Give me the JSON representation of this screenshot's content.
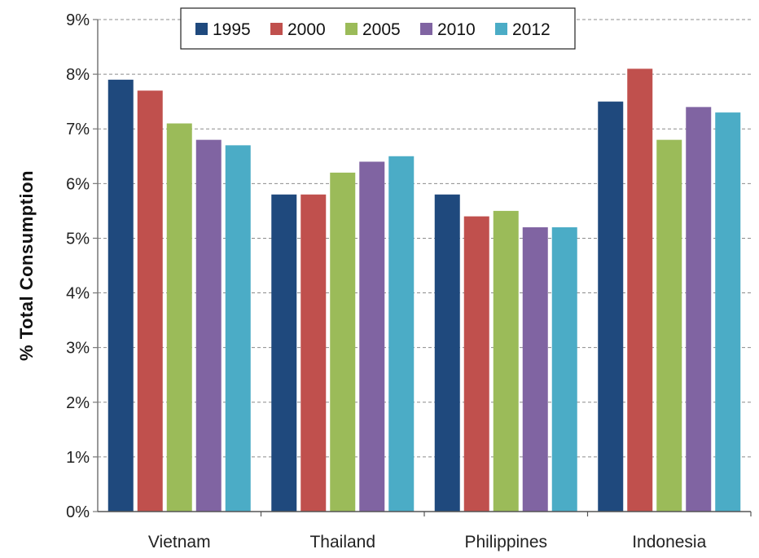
{
  "chart_data": {
    "type": "bar",
    "title": "",
    "xlabel": "",
    "ylabel": "% Total Consumption",
    "ylim": [
      0,
      9
    ],
    "yticks": [
      "0%",
      "1%",
      "2%",
      "3%",
      "4%",
      "5%",
      "6%",
      "7%",
      "8%",
      "9%"
    ],
    "grid": true,
    "legend_position": "top",
    "categories": [
      "Vietnam",
      "Thailand",
      "Philippines",
      "Indonesia"
    ],
    "series": [
      {
        "name": "1995",
        "color": "#1f497d",
        "values": [
          7.9,
          5.8,
          5.8,
          7.5
        ]
      },
      {
        "name": "2000",
        "color": "#c0504d",
        "values": [
          7.7,
          5.8,
          5.4,
          8.1
        ]
      },
      {
        "name": "2005",
        "color": "#9bbb59",
        "values": [
          7.1,
          6.2,
          5.5,
          6.8
        ]
      },
      {
        "name": "2010",
        "color": "#8064a2",
        "values": [
          6.8,
          6.4,
          5.2,
          7.4
        ]
      },
      {
        "name": "2012",
        "color": "#4bacc6",
        "values": [
          6.7,
          6.5,
          5.2,
          7.3
        ]
      }
    ]
  }
}
